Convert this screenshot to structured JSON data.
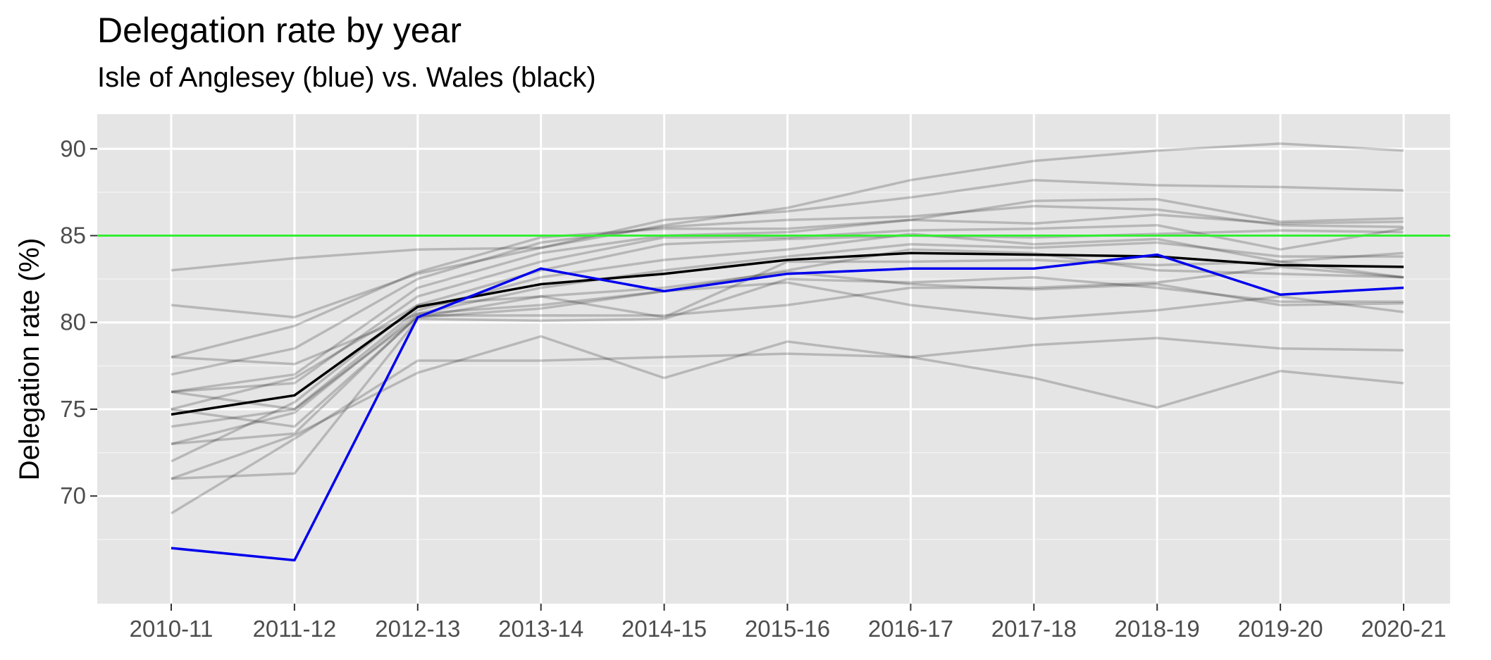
{
  "chart_data": {
    "type": "line",
    "title": "Delegation rate by year",
    "subtitle": "Isle of Anglesey (blue) vs. Wales (black)",
    "xlabel": "",
    "ylabel": "Delegation rate (%)",
    "categories": [
      "2010-11",
      "2011-12",
      "2012-13",
      "2013-14",
      "2014-15",
      "2015-16",
      "2016-17",
      "2017-18",
      "2018-19",
      "2019-20",
      "2020-21"
    ],
    "ylim": [
      63.8,
      92
    ],
    "yticks": [
      70,
      75,
      80,
      85,
      90
    ],
    "reference_line": {
      "y": 85,
      "color": "#33ee33"
    },
    "highlight_series": [
      {
        "label": "Isle of Anglesey",
        "color": "#0000ee",
        "values": [
          67.0,
          66.3,
          80.3,
          83.1,
          81.8,
          82.8,
          83.1,
          83.1,
          83.9,
          81.6,
          82.0
        ]
      },
      {
        "label": "Wales",
        "color": "#000000",
        "values": [
          74.7,
          75.8,
          80.9,
          82.2,
          82.8,
          83.6,
          84.0,
          83.9,
          83.8,
          83.3,
          83.2
        ]
      }
    ],
    "background_series": [
      {
        "values": [
          83.0,
          83.7,
          84.2,
          84.3,
          85.6,
          86.6,
          88.2,
          89.3,
          89.9,
          90.3,
          89.9
        ]
      },
      {
        "values": [
          81.0,
          80.3,
          82.8,
          84.3,
          85.9,
          86.4,
          87.2,
          88.2,
          87.9,
          87.8,
          87.6
        ]
      },
      {
        "values": [
          78.0,
          79.8,
          82.9,
          84.9,
          85.4,
          85.4,
          85.9,
          87.0,
          87.1,
          85.8,
          86.0
        ]
      },
      {
        "values": [
          77.0,
          78.5,
          82.5,
          84.6,
          85.5,
          85.9,
          86.1,
          86.7,
          86.5,
          85.6,
          85.5
        ]
      },
      {
        "values": [
          76.0,
          77.0,
          82.0,
          84.0,
          85.0,
          85.2,
          85.9,
          85.7,
          86.2,
          85.7,
          85.8
        ]
      },
      {
        "values": [
          76.0,
          76.5,
          81.5,
          83.5,
          84.9,
          84.9,
          85.3,
          85.4,
          85.6,
          84.2,
          85.4
        ]
      },
      {
        "values": [
          75.0,
          76.8,
          81.0,
          83.0,
          84.5,
          84.8,
          85.0,
          84.9,
          85.1,
          85.3,
          85.2
        ]
      },
      {
        "values": [
          74.0,
          75.0,
          80.7,
          82.6,
          83.6,
          84.2,
          85.1,
          84.5,
          84.8,
          83.5,
          84.0
        ]
      },
      {
        "values": [
          73.0,
          74.8,
          80.5,
          82.0,
          83.0,
          83.8,
          84.5,
          84.3,
          84.6,
          83.8,
          83.8
        ]
      },
      {
        "values": [
          72.0,
          75.4,
          81.0,
          81.5,
          80.3,
          83.5,
          83.5,
          83.6,
          83.3,
          83.5,
          82.6
        ]
      },
      {
        "values": [
          78.0,
          77.6,
          80.5,
          81.0,
          81.8,
          83.0,
          84.2,
          84.0,
          83.0,
          82.8,
          82.6
        ]
      },
      {
        "values": [
          73.0,
          73.6,
          80.4,
          80.4,
          80.4,
          81.0,
          82.0,
          82.0,
          82.3,
          83.2,
          82.6
        ]
      },
      {
        "values": [
          71.0,
          71.3,
          80.2,
          80.1,
          80.2,
          82.5,
          82.3,
          82.6,
          82.0,
          81.2,
          81.2
        ]
      },
      {
        "values": [
          76.0,
          75.0,
          80.3,
          81.5,
          82.0,
          82.9,
          82.2,
          81.9,
          82.2,
          81.0,
          81.1
        ]
      },
      {
        "values": [
          75.0,
          74.0,
          80.3,
          80.8,
          81.8,
          82.3,
          81.0,
          80.2,
          80.7,
          81.5,
          80.6
        ]
      },
      {
        "values": [
          69.0,
          73.3,
          77.8,
          77.8,
          78.0,
          78.2,
          78.0,
          78.7,
          79.1,
          78.5,
          78.4
        ]
      },
      {
        "values": [
          71.0,
          73.5,
          77.1,
          79.2,
          76.8,
          78.9,
          78.0,
          76.8,
          75.1,
          77.2,
          76.5
        ]
      }
    ]
  }
}
